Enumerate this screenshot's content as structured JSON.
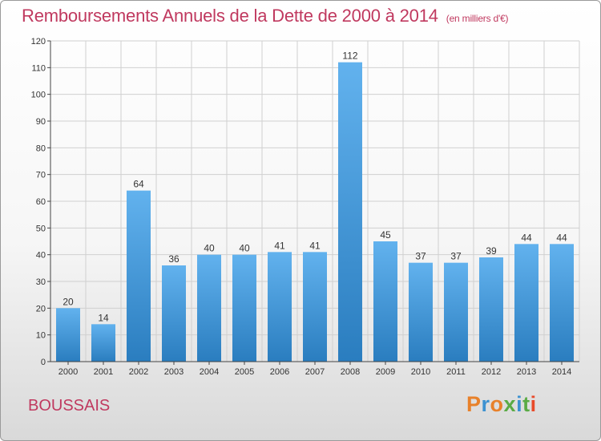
{
  "header": {
    "title": "Remboursements Annuels de la Dette de 2000 à 2014",
    "unit": "(en milliers d'€)"
  },
  "footer": {
    "town": "BOUSSAIS",
    "logo": "Proxiti"
  },
  "colors": {
    "accent": "#c0395f",
    "bar_light": "#62b2ee",
    "bar_dark": "#2a7dbf",
    "logo_letters": [
      "#e8812a",
      "#3d92d1",
      "#e8812a",
      "#5aab45",
      "#3d92d1",
      "#5aab45",
      "#e84a2a"
    ]
  },
  "chart_data": {
    "type": "bar",
    "categories": [
      "2000",
      "2001",
      "2002",
      "2003",
      "2004",
      "2005",
      "2006",
      "2007",
      "2008",
      "2009",
      "2010",
      "2011",
      "2012",
      "2013",
      "2014"
    ],
    "values": [
      20,
      14,
      64,
      36,
      40,
      40,
      41,
      41,
      112,
      45,
      37,
      37,
      39,
      44,
      44
    ],
    "title": "Remboursements Annuels de la Dette de 2000 à 2014",
    "subtitle": "(en milliers d'€)",
    "xlabel": "",
    "ylabel": "",
    "ylim": [
      0,
      120
    ],
    "yticks": [
      0,
      10,
      20,
      30,
      40,
      50,
      60,
      70,
      80,
      90,
      100,
      110,
      120
    ],
    "grid": true,
    "data_labels": true
  }
}
